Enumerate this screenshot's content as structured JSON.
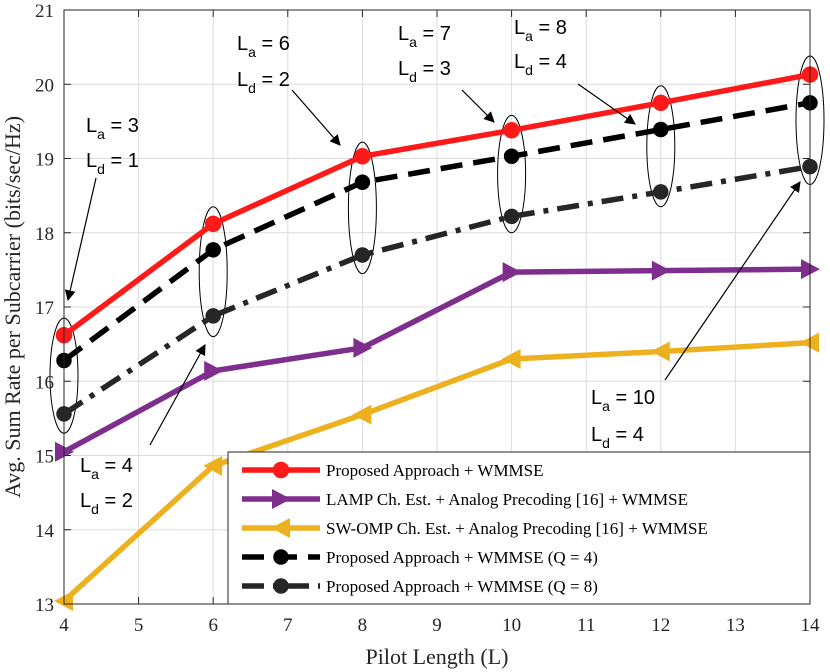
{
  "chart_data": {
    "type": "line",
    "title": "",
    "xlabel": "Pilot Length (L)",
    "ylabel": "Avg. Sum Rate per Subcarrier (bits/sec/Hz)",
    "xlim": [
      4,
      14
    ],
    "ylim": [
      13,
      21
    ],
    "xticks": [
      4,
      5,
      6,
      7,
      8,
      9,
      10,
      11,
      12,
      13,
      14
    ],
    "yticks": [
      13,
      14,
      15,
      16,
      17,
      18,
      19,
      20,
      21
    ],
    "grid": true,
    "legend_position": "bottom-right",
    "x": [
      4,
      6,
      8,
      10,
      12,
      14
    ],
    "series": [
      {
        "name": "Proposed Approach + WMMSE",
        "color": "#ff1a1a",
        "marker": "circle-filled",
        "dash": "solid",
        "values": [
          16.62,
          18.12,
          19.03,
          19.38,
          19.75,
          20.13
        ]
      },
      {
        "name": "LAMP Ch. Est. + Analog Precoding [16]  + WMMSE",
        "color": "#7e2f8e",
        "marker": "triangle-right",
        "dash": "solid",
        "values": [
          15.05,
          16.14,
          16.45,
          17.47,
          17.49,
          17.51
        ]
      },
      {
        "name": "SW-OMP Ch. Est. + Analog Precoding [16] + WMMSE",
        "color": "#edb120",
        "marker": "triangle-left",
        "dash": "solid",
        "values": [
          13.04,
          14.86,
          15.55,
          16.3,
          16.4,
          16.52
        ]
      },
      {
        "name": "Proposed Approach + WMMSE (Q = 4)",
        "color": "#000000",
        "marker": "circle-open",
        "dash": "dashed",
        "values": [
          16.28,
          17.77,
          18.68,
          19.03,
          19.39,
          19.75
        ]
      },
      {
        "name": "Proposed Approach + WMMSE (Q = 8)",
        "color": "#262626",
        "marker": "circle-dot",
        "dash": "dashdot",
        "values": [
          15.56,
          16.88,
          17.7,
          18.22,
          18.55,
          18.89
        ]
      }
    ],
    "annotations": [
      {
        "la": "L",
        "la_sub": "a",
        "la_val": " = 3",
        "ld": "L",
        "ld_sub": "d",
        "ld_val": " = 1",
        "points_to": [
          4,
          16.62
        ]
      },
      {
        "la": "L",
        "la_sub": "a",
        "la_val": " = 4",
        "ld": "L",
        "ld_sub": "d",
        "ld_val": " = 2",
        "points_to": [
          6,
          16.88
        ]
      },
      {
        "la": "L",
        "la_sub": "a",
        "la_val": " = 6",
        "ld": "L",
        "ld_sub": "d",
        "ld_val": " = 2",
        "points_to": [
          8,
          19.03
        ]
      },
      {
        "la": "L",
        "la_sub": "a",
        "la_val": " = 7",
        "ld": "L",
        "ld_sub": "d",
        "ld_val": " = 3",
        "points_to": [
          10,
          19.38
        ]
      },
      {
        "la": "L",
        "la_sub": "a",
        "la_val": " = 8",
        "ld": "L",
        "ld_sub": "d",
        "ld_val": " = 4",
        "points_to": [
          12,
          19.39
        ]
      },
      {
        "la": "L",
        "la_sub": "a",
        "la_val": " = 10",
        "ld": "L",
        "ld_sub": "d",
        "ld_val": " = 4",
        "points_to": [
          14,
          18.89
        ]
      }
    ]
  }
}
